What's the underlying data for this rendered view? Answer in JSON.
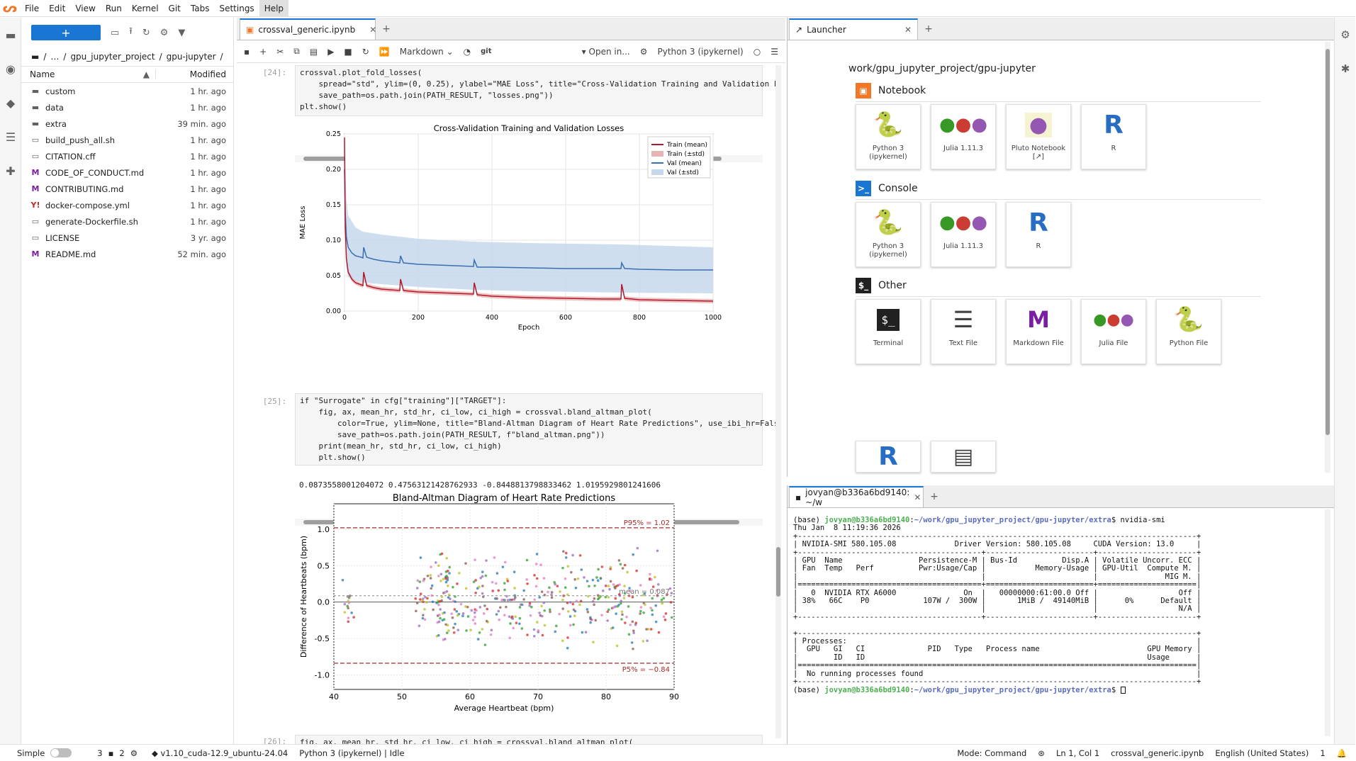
{
  "menubar": {
    "items": [
      "File",
      "Edit",
      "View",
      "Run",
      "Kernel",
      "Git",
      "Tabs",
      "Settings",
      "Help"
    ],
    "active": "Help"
  },
  "filebrowser": {
    "new_label": "+",
    "breadcrumb": [
      "…",
      "gpu_jupyter_project",
      "gpu-jupyter"
    ],
    "col_name": "Name",
    "col_modified": "Modified",
    "files": [
      {
        "name": "custom",
        "modified": "1 hr. ago",
        "type": "folder"
      },
      {
        "name": "data",
        "modified": "1 hr. ago",
        "type": "folder"
      },
      {
        "name": "extra",
        "modified": "39 min. ago",
        "type": "folder"
      },
      {
        "name": "build_push_all.sh",
        "modified": "1 hr. ago",
        "type": "file"
      },
      {
        "name": "CITATION.cff",
        "modified": "1 hr. ago",
        "type": "file"
      },
      {
        "name": "CODE_OF_CONDUCT.md",
        "modified": "1 hr. ago",
        "type": "md"
      },
      {
        "name": "CONTRIBUTING.md",
        "modified": "1 hr. ago",
        "type": "md"
      },
      {
        "name": "docker-compose.yml",
        "modified": "1 hr. ago",
        "type": "yml"
      },
      {
        "name": "generate-Dockerfile.sh",
        "modified": "1 hr. ago",
        "type": "file"
      },
      {
        "name": "LICENSE",
        "modified": "3 yr. ago",
        "type": "file"
      },
      {
        "name": "README.md",
        "modified": "52 min. ago",
        "type": "md"
      }
    ]
  },
  "notebook": {
    "tab_label": "crossval_generic.ipynb",
    "cell_type": "Markdown",
    "git_label": "git",
    "open_in": "Open in...",
    "kernel": "Python 3 (ipykernel)",
    "cell24_prompt": "[24]:",
    "cell25_prompt": "[25]:",
    "cell26_prompt": "[26]:",
    "cell24_lines": [
      "crossval.plot_fold_losses(",
      "    spread=\"std\", ylim=(0, 0.25), ylabel=\"MAE Loss\", title=\"Cross-Validation Training and Validation L",
      "    save_path=os.path.join(PATH_RESULT, \"losses.png\"))",
      "plt.show()"
    ],
    "cell25_lines": [
      "if \"Surrogate\" in cfg[\"training\"][\"TARGET\"]:",
      "    fig, ax, mean_hr, std_hr, ci_low, ci_high = crossval.bland_altman_plot(",
      "        color=True, ylim=None, title=\"Bland-Altman Diagram of Heart Rate Predictions\", use_ibi_hr=Fals",
      "        save_path=os.path.join(PATH_RESULT, f\"bland_altman.png\"))",
      "    print(mean_hr, std_hr, ci_low, ci_high)",
      "    plt.show()"
    ],
    "cell25_output": "0.08735580012040​72 0.47563121428762933 -0.8448813798833462 1.0195929801241606",
    "cell26_line": "fig, ax, mean_hr, std_hr, ci_low, ci_high = crossval.bland_altman_plot("
  },
  "chart_data": [
    {
      "type": "line",
      "title": "Cross-Validation Training and Validation Losses",
      "xlabel": "Epoch",
      "ylabel": "MAE Loss",
      "xlim": [
        0,
        1000
      ],
      "ylim": [
        0,
        0.25
      ],
      "xticks": [
        0,
        200,
        400,
        600,
        800,
        1000
      ],
      "yticks": [
        0.0,
        0.05,
        0.1,
        0.15,
        0.2,
        0.25
      ],
      "legend": [
        "Train (mean)",
        "Train (±std)",
        "Val (mean)",
        "Val (±std)"
      ],
      "legend_position": "top-right",
      "grid": true,
      "series": [
        {
          "name": "Train (mean)",
          "color": "#b2182b",
          "x": [
            0,
            2,
            5,
            10,
            20,
            30,
            45,
            50,
            52,
            60,
            80,
            100,
            150,
            152,
            160,
            200,
            250,
            300,
            350,
            352,
            360,
            400,
            500,
            600,
            700,
            750,
            752,
            760,
            800,
            900,
            1000
          ],
          "y": [
            0.245,
            0.12,
            0.075,
            0.055,
            0.045,
            0.04,
            0.037,
            0.036,
            0.055,
            0.036,
            0.033,
            0.031,
            0.029,
            0.045,
            0.029,
            0.027,
            0.026,
            0.025,
            0.024,
            0.04,
            0.023,
            0.021,
            0.019,
            0.018,
            0.017,
            0.017,
            0.038,
            0.018,
            0.016,
            0.015,
            0.014
          ]
        },
        {
          "name": "Val (mean)",
          "color": "#3a6fb0",
          "x": [
            0,
            2,
            5,
            10,
            20,
            30,
            45,
            50,
            52,
            60,
            80,
            100,
            150,
            152,
            160,
            200,
            250,
            300,
            350,
            352,
            360,
            400,
            500,
            600,
            700,
            750,
            752,
            760,
            800,
            900,
            1000
          ],
          "y": [
            0.2,
            0.14,
            0.105,
            0.09,
            0.082,
            0.078,
            0.076,
            0.075,
            0.09,
            0.076,
            0.073,
            0.071,
            0.068,
            0.078,
            0.068,
            0.066,
            0.065,
            0.064,
            0.063,
            0.072,
            0.062,
            0.062,
            0.061,
            0.06,
            0.06,
            0.06,
            0.068,
            0.06,
            0.059,
            0.058,
            0.058
          ]
        },
        {
          "name": "Val (±std) upper",
          "color": "#c6d8ec",
          "x": [
            0,
            5,
            10,
            30,
            50,
            100,
            200,
            350,
            500,
            750,
            1000
          ],
          "y": [
            0.25,
            0.16,
            0.135,
            0.118,
            0.112,
            0.108,
            0.102,
            0.098,
            0.096,
            0.094,
            0.09
          ]
        },
        {
          "name": "Val (±std) lower",
          "color": "#c6d8ec",
          "x": [
            0,
            5,
            10,
            30,
            50,
            100,
            200,
            350,
            500,
            750,
            1000
          ],
          "y": [
            0.15,
            0.06,
            0.048,
            0.043,
            0.04,
            0.038,
            0.034,
            0.03,
            0.028,
            0.026,
            0.025
          ]
        }
      ]
    },
    {
      "type": "scatter",
      "title": "Bland-Altman Diagram of Heart Rate Predictions",
      "xlabel": "Average Heartbeat (bpm)",
      "ylabel": "Difference of Heartbeats (bpm)",
      "xlim": [
        40,
        90
      ],
      "ylim": [
        -1.2,
        1.35
      ],
      "xticks": [
        40,
        50,
        60,
        70,
        80,
        90
      ],
      "yticks": [
        -1.0,
        -0.5,
        0.0,
        0.5,
        1.0
      ],
      "mean": 0.087,
      "upper": 1.02,
      "lower": -0.84,
      "mean_label": "mean = 0.087",
      "upper_label": "P95% = 1.02",
      "lower_label": "P5% = −0.84"
    }
  ],
  "launcher": {
    "tab_label": "Launcher",
    "path": "work/gpu_jupyter_project/gpu-jupyter",
    "sections": [
      {
        "title": "Notebook",
        "items": [
          "Python 3 (ipykernel)",
          "Julia 1.11.3",
          "Pluto Notebook [↗]",
          "R"
        ]
      },
      {
        "title": "Console",
        "items": [
          "Python 3 (ipykernel)",
          "Julia 1.11.3",
          "R"
        ]
      },
      {
        "title": "Other",
        "items": [
          "Terminal",
          "Text File",
          "Markdown File",
          "Julia File",
          "Python File"
        ]
      }
    ]
  },
  "terminal": {
    "tab_label": "jovyan@b336a6bd9140: ~/w",
    "prompt_user": "jovyan@b336a6bd9140",
    "prompt_path": "~/work/gpu_jupyter_project/gpu-jupyter/extra",
    "command": "nvidia-smi",
    "lines": [
      "Thu Jan  8 11:19:36 2026",
      "+-----------------------------------------------------------------------------------------+",
      "| NVIDIA-SMI 580.105.08             Driver Version: 580.105.08     CUDA Version: 13.0     |",
      "+-----------------------------------------+------------------------+----------------------+",
      "| GPU  Name                 Persistence-M | Bus-Id          Disp.A | Volatile Uncorr. ECC |",
      "| Fan  Temp   Perf          Pwr:Usage/Cap |           Memory-Usage | GPU-Util  Compute M. |",
      "|                                         |                        |               MIG M. |",
      "|=========================================+========================+======================|",
      "|   0  NVIDIA RTX A6000               On  |   00000000:61:00.0 Off |                  Off |",
      "| 38%   66C    P0            107W /  300W |       1MiB /  49140MiB |      0%      Default |",
      "|                                         |                        |                  N/A |",
      "+-----------------------------------------+------------------------+----------------------+",
      "",
      "+-----------------------------------------------------------------------------------------+",
      "| Processes:                                                                              |",
      "|  GPU   GI   CI              PID   Type   Process name                        GPU Memory |",
      "|        ID   ID                                                               Usage      |",
      "|=========================================================================================|",
      "|  No running processes found                                                             |",
      "+-----------------------------------------------------------------------------------------+"
    ]
  },
  "statusbar": {
    "mode_simple": "Simple",
    "terminals": "3",
    "kernels": "2",
    "branch": "v1.10_cuda-12.9_ubuntu-24.04",
    "kernel_status": "Python 3 (ipykernel) | Idle",
    "mode": "Mode: Command",
    "cursor": "Ln 1, Col 1",
    "file": "crossval_generic.ipynb",
    "language": "English (United States)",
    "notifications": "1"
  }
}
